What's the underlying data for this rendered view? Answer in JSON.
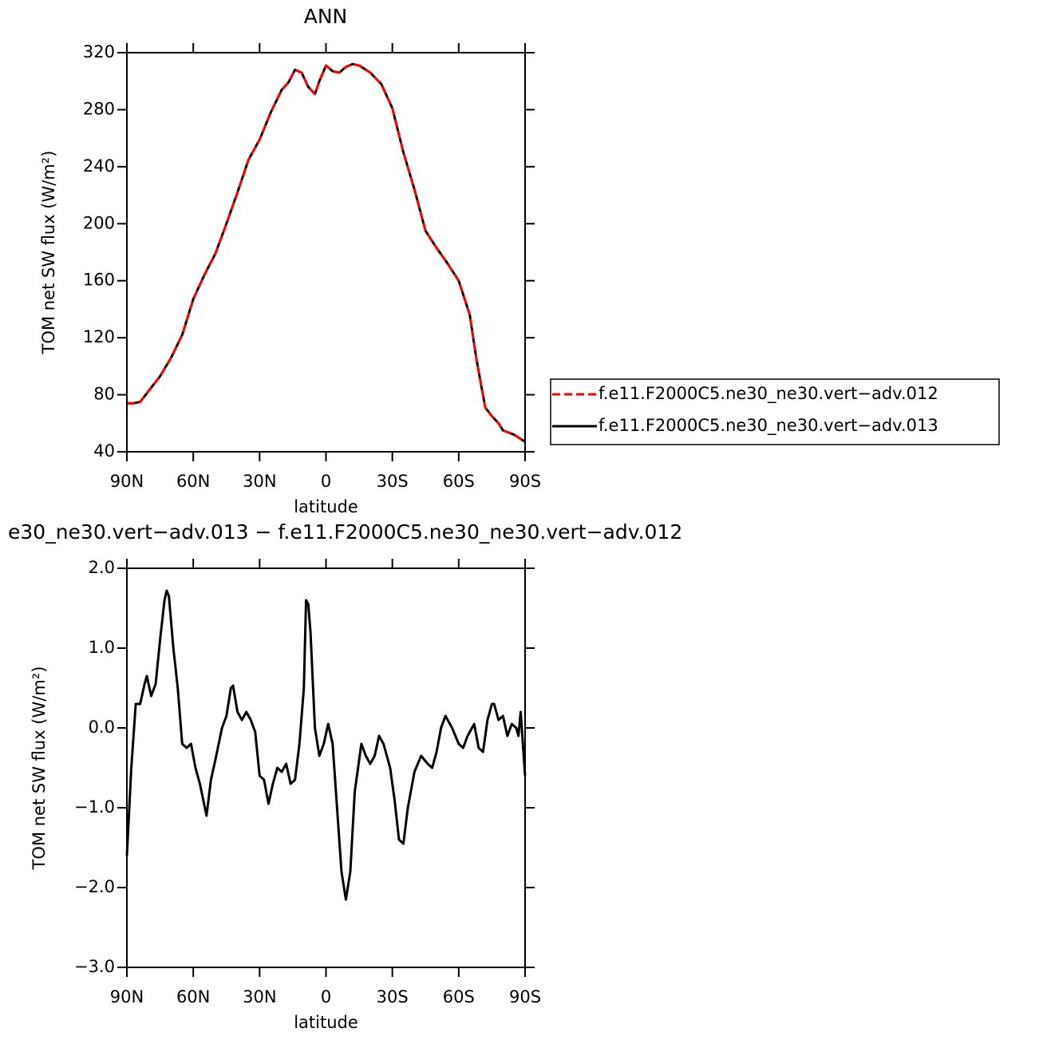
{
  "chart_data": [
    {
      "type": "line",
      "title": "ANN",
      "xlabel": "latitude",
      "ylabel": "TOM net SW flux (W/m²)",
      "x": [
        90,
        87,
        84,
        80,
        75,
        70,
        65,
        60,
        55,
        50,
        45,
        40,
        35,
        30,
        25,
        20,
        17,
        14,
        11,
        8,
        5,
        3,
        0,
        -3,
        -6,
        -9,
        -12,
        -15,
        -20,
        -25,
        -30,
        -35,
        -40,
        -45,
        -50,
        -55,
        -60,
        -65,
        -68,
        -72,
        -75,
        -78,
        -80,
        -85,
        -90
      ],
      "series": [
        {
          "name": "f.e11.F2000C5.ne30_ne30.vert−adv.012",
          "color": "#ff0000",
          "line_style": "dashed",
          "values": [
            74,
            74,
            75,
            83,
            93,
            106,
            122,
            147,
            164,
            179,
            200,
            222,
            245,
            259,
            278,
            294,
            299,
            308,
            306,
            296,
            291,
            300,
            311,
            307,
            306,
            310,
            312,
            311,
            306,
            298,
            281,
            250,
            224,
            195,
            183,
            172,
            160,
            136,
            105,
            71,
            65,
            60,
            55,
            52,
            47
          ]
        },
        {
          "name": "f.e11.F2000C5.ne30_ne30.vert−adv.013",
          "color": "#000000",
          "line_style": "solid",
          "values": [
            74,
            74,
            75,
            83,
            93,
            106,
            122,
            147,
            164,
            179,
            200,
            222,
            245,
            259,
            278,
            294,
            299,
            308,
            306,
            296,
            291,
            300,
            311,
            307,
            306,
            310,
            312,
            311,
            306,
            298,
            281,
            250,
            224,
            195,
            183,
            172,
            160,
            136,
            105,
            71,
            65,
            60,
            55,
            52,
            47
          ]
        }
      ],
      "xlim": [
        90,
        -90
      ],
      "xticks": [
        {
          "value": 90,
          "label": "90N"
        },
        {
          "value": 60,
          "label": "60N"
        },
        {
          "value": 30,
          "label": "30N"
        },
        0,
        {
          "value": -30,
          "label": "30S"
        },
        {
          "value": -60,
          "label": "60S"
        },
        {
          "value": -90,
          "label": "90S"
        }
      ],
      "ylim": [
        40,
        320
      ],
      "yticks": [
        40,
        80,
        120,
        160,
        200,
        240,
        280,
        320
      ],
      "legend": "right"
    },
    {
      "type": "line",
      "title": "e30_ne30.vert−adv.013 − f.e11.F2000C5.ne30_ne30.vert−adv.012",
      "xlabel": "latitude",
      "ylabel": "TOM net SW flux (W/m²)",
      "x": [
        90,
        88,
        86,
        84,
        82,
        81,
        79,
        77,
        75,
        73,
        72,
        71,
        69,
        67,
        65,
        63,
        61,
        59,
        57,
        54,
        52,
        50,
        47,
        45,
        43,
        42,
        40,
        38,
        36,
        34,
        32,
        30,
        28,
        26,
        24,
        22,
        20,
        18,
        16,
        14,
        12,
        10,
        9,
        8,
        7,
        5,
        3,
        1,
        -1,
        -3,
        -5,
        -7,
        -9,
        -11,
        -13,
        -16,
        -18,
        -20,
        -22,
        -24,
        -26,
        -29,
        -31,
        -33,
        -35,
        -37,
        -40,
        -43,
        -46,
        -48,
        -50,
        -52,
        -54,
        -57,
        -60,
        -62,
        -64,
        -67,
        -69,
        -71,
        -73,
        -75,
        -76,
        -78,
        -80,
        -82,
        -84,
        -86,
        -87,
        -88,
        -90
      ],
      "values": [
        -1.6,
        -0.5,
        0.3,
        0.3,
        0.55,
        0.65,
        0.4,
        0.55,
        1.1,
        1.6,
        1.72,
        1.65,
        1.0,
        0.5,
        -0.2,
        -0.25,
        -0.2,
        -0.5,
        -0.7,
        -1.1,
        -0.65,
        -0.4,
        0.0,
        0.15,
        0.5,
        0.53,
        0.2,
        0.1,
        0.2,
        0.1,
        -0.05,
        -0.6,
        -0.65,
        -0.95,
        -0.7,
        -0.5,
        -0.55,
        -0.45,
        -0.7,
        -0.65,
        -0.2,
        0.5,
        1.6,
        1.55,
        1.2,
        0.0,
        -0.35,
        -0.2,
        0.05,
        -0.2,
        -1.0,
        -1.8,
        -2.15,
        -1.8,
        -0.8,
        -0.2,
        -0.35,
        -0.45,
        -0.35,
        -0.1,
        -0.2,
        -0.5,
        -0.9,
        -1.4,
        -1.45,
        -1.0,
        -0.55,
        -0.35,
        -0.45,
        -0.5,
        -0.3,
        0.0,
        0.15,
        0.0,
        -0.2,
        -0.25,
        -0.1,
        0.05,
        -0.25,
        -0.3,
        0.1,
        0.3,
        0.3,
        0.1,
        0.15,
        -0.1,
        0.05,
        0.0,
        -0.1,
        0.2,
        -0.6
      ],
      "color": "#000000",
      "xlim": [
        90,
        -90
      ],
      "xticks": [
        {
          "value": 90,
          "label": "90N"
        },
        {
          "value": 60,
          "label": "60N"
        },
        {
          "value": 30,
          "label": "30N"
        },
        0,
        {
          "value": -30,
          "label": "30S"
        },
        {
          "value": -60,
          "label": "60S"
        },
        {
          "value": -90,
          "label": "90S"
        }
      ],
      "ylim": [
        -3,
        2
      ],
      "yticks": [
        {
          "value": -3,
          "label": "−3.0"
        },
        {
          "value": -2,
          "label": "−2.0"
        },
        {
          "value": -1,
          "label": "−1.0"
        },
        {
          "value": 0,
          "label": "0.0"
        },
        {
          "value": 1,
          "label": "1.0"
        },
        {
          "value": 2,
          "label": "2.0"
        }
      ]
    }
  ]
}
